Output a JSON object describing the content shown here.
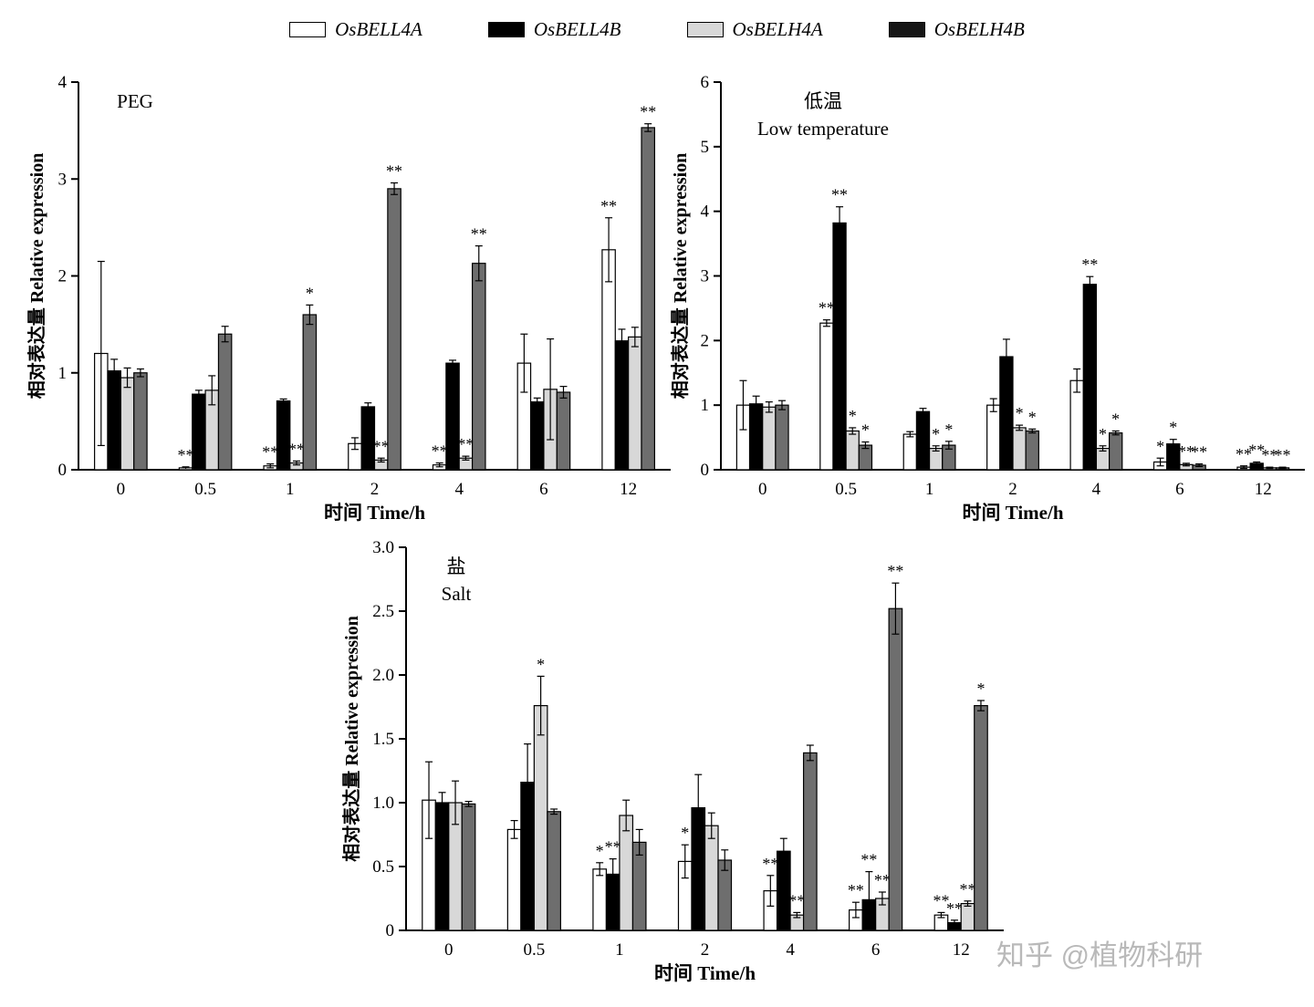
{
  "figure": {
    "background": "#ffffff",
    "watermark": "知乎 @植物科研"
  },
  "legend": {
    "position": "top",
    "items": [
      {
        "label": "OsBELL4A",
        "fill": "#ffffff",
        "stroke": "#000000"
      },
      {
        "label": "OsBELL4B",
        "fill": "#000000",
        "stroke": "#000000"
      },
      {
        "label": "OsBELH4A",
        "fill": "#d8d8d8",
        "stroke": "#000000"
      },
      {
        "label": "OsBELH4B",
        "fill": "#161616",
        "stroke": "#000000"
      }
    ]
  },
  "bar_colors": [
    "#ffffff",
    "#000000",
    "#d8d8d8",
    "#6e6e6e"
  ],
  "chart_data": [
    {
      "id": "peg",
      "type": "bar",
      "grid": false,
      "legend_position": "top",
      "title_lines": [
        "PEG"
      ],
      "xlabel": "时间 Time/h",
      "ylabel": "相对表达量 Relative expression",
      "ylim": [
        0,
        4
      ],
      "yticks": [
        0,
        1,
        2,
        3,
        4
      ],
      "ytick_labels": [
        "0",
        "1",
        "2",
        "3",
        "4"
      ],
      "categories": [
        "0",
        "0.5",
        "1",
        "2",
        "4",
        "6",
        "12"
      ],
      "series": [
        {
          "name": "OsBELL4A",
          "values": [
            1.2,
            0.02,
            0.04,
            0.27,
            0.05,
            1.1,
            2.27
          ],
          "errors": [
            0.95,
            0.01,
            0.02,
            0.06,
            0.02,
            0.3,
            0.33
          ],
          "sig": [
            "",
            "**",
            "**",
            "",
            "**",
            "",
            "**"
          ]
        },
        {
          "name": "OsBELL4B",
          "values": [
            1.02,
            0.78,
            0.71,
            0.65,
            1.1,
            0.7,
            1.33
          ],
          "errors": [
            0.12,
            0.04,
            0.02,
            0.04,
            0.03,
            0.04,
            0.12
          ],
          "sig": [
            "",
            "",
            "",
            "",
            "",
            "",
            ""
          ]
        },
        {
          "name": "OsBELH4A",
          "values": [
            0.95,
            0.82,
            0.07,
            0.1,
            0.12,
            0.83,
            1.37
          ],
          "errors": [
            0.1,
            0.15,
            0.02,
            0.02,
            0.02,
            0.52,
            0.1
          ],
          "sig": [
            "",
            "",
            "**",
            "**",
            "**",
            "",
            ""
          ]
        },
        {
          "name": "OsBELH4B",
          "values": [
            1.0,
            1.4,
            1.6,
            2.9,
            2.13,
            0.8,
            3.53
          ],
          "errors": [
            0.04,
            0.08,
            0.1,
            0.06,
            0.18,
            0.06,
            0.04
          ],
          "sig": [
            "",
            "",
            "*",
            "**",
            "**",
            "",
            "**"
          ]
        }
      ]
    },
    {
      "id": "low-temperature",
      "type": "bar",
      "grid": false,
      "legend_position": "top",
      "title_lines": [
        "低温",
        "Low temperature"
      ],
      "xlabel": "时间 Time/h",
      "ylabel": "相对表达量 Relative expression",
      "ylim": [
        0,
        6
      ],
      "yticks": [
        0,
        1,
        2,
        3,
        4,
        5,
        6
      ],
      "ytick_labels": [
        "0",
        "1",
        "2",
        "3",
        "4",
        "5",
        "6"
      ],
      "categories": [
        "0",
        "0.5",
        "1",
        "2",
        "4",
        "6",
        "12"
      ],
      "series": [
        {
          "name": "OsBELL4A",
          "values": [
            1.0,
            2.27,
            0.55,
            1.0,
            1.38,
            0.12,
            0.04
          ],
          "errors": [
            0.38,
            0.05,
            0.04,
            0.1,
            0.18,
            0.06,
            0.02
          ],
          "sig": [
            "",
            "**",
            "",
            "",
            "",
            "*",
            "**"
          ]
        },
        {
          "name": "OsBELL4B",
          "values": [
            1.02,
            3.82,
            0.9,
            1.75,
            2.87,
            0.4,
            0.1
          ],
          "errors": [
            0.12,
            0.25,
            0.05,
            0.27,
            0.12,
            0.07,
            0.02
          ],
          "sig": [
            "",
            "**",
            "",
            "",
            "**",
            "*",
            "**"
          ]
        },
        {
          "name": "OsBELH4A",
          "values": [
            0.97,
            0.6,
            0.33,
            0.65,
            0.33,
            0.08,
            0.03
          ],
          "errors": [
            0.08,
            0.05,
            0.04,
            0.04,
            0.04,
            0.02,
            0.01
          ],
          "sig": [
            "",
            "*",
            "*",
            "*",
            "*",
            "**",
            "**"
          ]
        },
        {
          "name": "OsBELH4B",
          "values": [
            1.0,
            0.38,
            0.38,
            0.6,
            0.57,
            0.07,
            0.03
          ],
          "errors": [
            0.07,
            0.05,
            0.06,
            0.03,
            0.03,
            0.02,
            0.01
          ],
          "sig": [
            "",
            "*",
            "*",
            "*",
            "*",
            "**",
            "**"
          ]
        }
      ]
    },
    {
      "id": "salt",
      "type": "bar",
      "grid": false,
      "legend_position": "top",
      "title_lines": [
        "盐",
        "Salt"
      ],
      "xlabel": "时间 Time/h",
      "ylabel": "相对表达量 Relative expression",
      "ylim": [
        0,
        3
      ],
      "yticks": [
        0,
        0.5,
        1,
        1.5,
        2,
        2.5,
        3
      ],
      "ytick_labels": [
        "0",
        "0.5",
        "1.0",
        "1.5",
        "2.0",
        "2.5",
        "3.0"
      ],
      "categories": [
        "0",
        "0.5",
        "1",
        "2",
        "4",
        "6",
        "12"
      ],
      "series": [
        {
          "name": "OsBELL4A",
          "values": [
            1.02,
            0.79,
            0.48,
            0.54,
            0.31,
            0.16,
            0.12
          ],
          "errors": [
            0.3,
            0.07,
            0.05,
            0.13,
            0.12,
            0.06,
            0.02
          ],
          "sig": [
            "",
            "",
            "*",
            "*",
            "**",
            "**",
            "**"
          ]
        },
        {
          "name": "OsBELL4B",
          "values": [
            1.0,
            1.16,
            0.44,
            0.96,
            0.62,
            0.24,
            0.06
          ],
          "errors": [
            0.08,
            0.3,
            0.12,
            0.26,
            0.1,
            0.22,
            0.02
          ],
          "sig": [
            "",
            "",
            "**",
            "",
            "",
            "**",
            "**"
          ]
        },
        {
          "name": "OsBELH4A",
          "values": [
            1.0,
            1.76,
            0.9,
            0.82,
            0.12,
            0.25,
            0.21
          ],
          "errors": [
            0.17,
            0.23,
            0.12,
            0.1,
            0.02,
            0.05,
            0.02
          ],
          "sig": [
            "",
            "*",
            "",
            "",
            "**",
            "**",
            "**"
          ]
        },
        {
          "name": "OsBELH4B",
          "values": [
            0.99,
            0.93,
            0.69,
            0.55,
            1.39,
            2.52,
            1.76
          ],
          "errors": [
            0.02,
            0.02,
            0.1,
            0.08,
            0.06,
            0.2,
            0.04
          ],
          "sig": [
            "",
            "",
            "",
            "",
            "",
            "**",
            "*"
          ]
        }
      ]
    }
  ]
}
